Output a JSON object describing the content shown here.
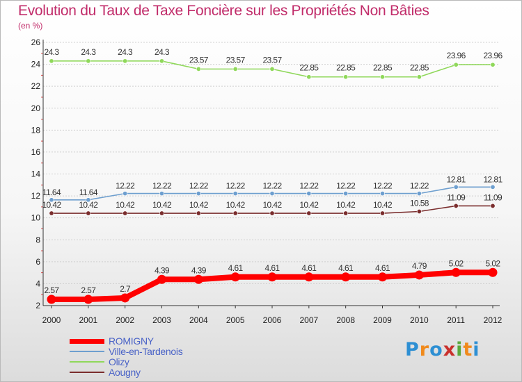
{
  "chart_data": {
    "type": "line",
    "title": "Evolution du Taux de Taxe Foncière sur les Propriétés Non Bâties",
    "ylabel": "(en %)",
    "ylim": [
      2,
      26
    ],
    "yticks": [
      "2",
      "4",
      "6",
      "8",
      "10",
      "12",
      "14",
      "16",
      "18",
      "20",
      "22",
      "24",
      "26"
    ],
    "categories": [
      "2000",
      "2001",
      "2002",
      "2003",
      "2004",
      "2005",
      "2006",
      "2007",
      "2008",
      "2009",
      "2010",
      "2011",
      "2012"
    ],
    "grid": "horizontal",
    "legend": "bottom-left",
    "series": [
      {
        "name": "ROMIGNY",
        "color": "#ff0000",
        "values": [
          2.57,
          2.57,
          2.7,
          4.39,
          4.39,
          4.61,
          4.61,
          4.61,
          4.61,
          4.61,
          4.79,
          5.02,
          5.02
        ],
        "labels": [
          "2.57",
          "2.57",
          "2.7",
          "4.39",
          "4.39",
          "4.61",
          "4.61",
          "4.61",
          "4.61",
          "4.61",
          "4.79",
          "5.02",
          "5.02"
        ]
      },
      {
        "name": "Ville-en-Tardenois",
        "color": "#6e9fcf",
        "values": [
          11.64,
          11.64,
          12.22,
          12.22,
          12.22,
          12.22,
          12.22,
          12.22,
          12.22,
          12.22,
          12.22,
          12.81,
          12.81
        ],
        "labels": [
          "11.64",
          "11.64",
          "12.22",
          "12.22",
          "12.22",
          "12.22",
          "12.22",
          "12.22",
          "12.22",
          "12.22",
          "12.22",
          "12.81",
          "12.81"
        ]
      },
      {
        "name": "Olizy",
        "color": "#8fd85a",
        "values": [
          24.3,
          24.3,
          24.3,
          24.3,
          23.57,
          23.57,
          23.57,
          22.85,
          22.85,
          22.85,
          22.85,
          23.96,
          23.96
        ],
        "labels": [
          "24.3",
          "24.3",
          "24.3",
          "24.3",
          "23.57",
          "23.57",
          "23.57",
          "22.85",
          "22.85",
          "22.85",
          "22.85",
          "23.96",
          "23.96"
        ]
      },
      {
        "name": "Aougny",
        "color": "#7a2d2d",
        "values": [
          10.42,
          10.42,
          10.42,
          10.42,
          10.42,
          10.42,
          10.42,
          10.42,
          10.42,
          10.42,
          10.58,
          11.09,
          11.09
        ],
        "labels": [
          "10.42",
          "10.42",
          "10.42",
          "10.42",
          "10.42",
          "10.42",
          "10.42",
          "10.42",
          "10.42",
          "10.42",
          "10.58",
          "11.09",
          "11.09"
        ]
      }
    ]
  },
  "legend_order": [
    0,
    1,
    2,
    3
  ],
  "logo": {
    "letters": [
      "P",
      "r",
      "o",
      "x",
      "i",
      "t",
      "i"
    ],
    "colors": [
      "#2d8fd3",
      "#f08a1c",
      "#2d8fd3",
      "#c9302c",
      "#5aa83b",
      "#f08a1c",
      "#2d8fd3"
    ]
  }
}
